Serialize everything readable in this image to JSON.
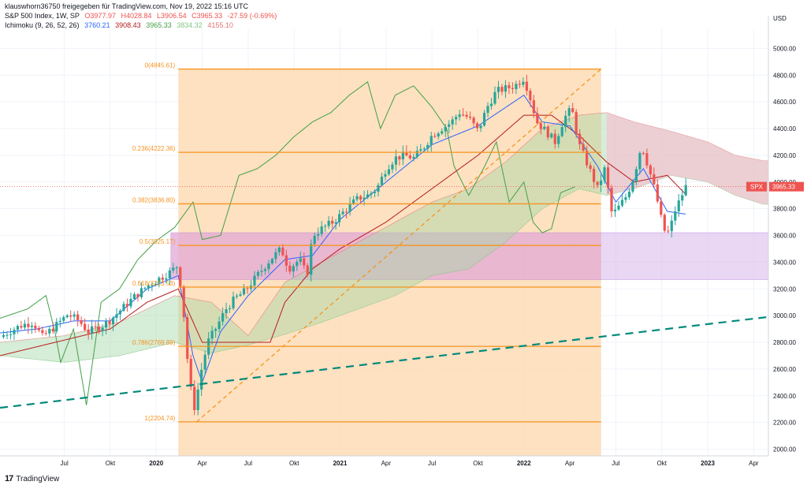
{
  "header": {
    "line1": "klauswhorn36750 freigegeben für TradingView.com, Nov 19, 2022 15:16 UTC",
    "line2": {
      "symbol": "S&P 500 Index, 1W, SP",
      "open": "O3977.97",
      "high": "H4028.84",
      "low": "L3906.54",
      "close": "C3965.33",
      "change": "-27.59 (-0.69%)"
    },
    "line3": {
      "name": "Ichimoku (9, 26, 52, 26)",
      "v1": "3760.21",
      "v2": "3908.43",
      "v3": "3965.33",
      "v4": "3834.32",
      "v5": "4155.10"
    }
  },
  "footer": {
    "logo_text": "TradingView",
    "logo_mark": "17"
  },
  "colors": {
    "up": "#26a69a",
    "down": "#ef5350",
    "fib": "#f7931e",
    "fib_zone": "#fddcb5",
    "pink_zone": "#e8a0c8",
    "purple_zone": "#d9b8ec",
    "tenkan": "#2962ff",
    "kijun": "#b71c1c",
    "chikou": "#43a047",
    "cloud_bull": "#a5d6a7",
    "cloud_bear": "#f8bbd0",
    "trend": "#00897b"
  },
  "chart_data": {
    "type": "candlestick",
    "currency": "USD",
    "last_label": "SPX",
    "last_value": "3965.33",
    "ylim": [
      1950,
      5150
    ],
    "y_ticks": [
      "5000.00",
      "4800.00",
      "4600.00",
      "4400.00",
      "4200.00",
      "4000.00",
      "3800.00",
      "3600.00",
      "3400.00",
      "3200.00",
      "3000.00",
      "2800.00",
      "2600.00",
      "2400.00",
      "2200.00",
      "2000.00"
    ],
    "x_ticks": [
      {
        "t": 2019.5,
        "label": "Jul",
        "bold": false
      },
      {
        "t": 2019.75,
        "label": "Okt",
        "bold": false
      },
      {
        "t": 2020.0,
        "label": "2020",
        "bold": true
      },
      {
        "t": 2020.25,
        "label": "Apr",
        "bold": false
      },
      {
        "t": 2020.5,
        "label": "Jul",
        "bold": false
      },
      {
        "t": 2020.75,
        "label": "Okt",
        "bold": false
      },
      {
        "t": 2021.0,
        "label": "2021",
        "bold": true
      },
      {
        "t": 2021.25,
        "label": "Apr",
        "bold": false
      },
      {
        "t": 2021.5,
        "label": "Jul",
        "bold": false
      },
      {
        "t": 2021.75,
        "label": "Okt",
        "bold": false
      },
      {
        "t": 2022.0,
        "label": "2022",
        "bold": true
      },
      {
        "t": 2022.25,
        "label": "Apr",
        "bold": false
      },
      {
        "t": 2022.5,
        "label": "Jul",
        "bold": false
      },
      {
        "t": 2022.75,
        "label": "Okt",
        "bold": false
      },
      {
        "t": 2023.0,
        "label": "2023",
        "bold": true
      },
      {
        "t": 2023.25,
        "label": "Apr",
        "bold": false
      }
    ],
    "fib_levels": [
      {
        "label": "0(4845.61)",
        "value": 4845.61
      },
      {
        "label": "0.236(4222.36)",
        "value": 4222.36
      },
      {
        "label": "0.382(3836.80)",
        "value": 3836.8
      },
      {
        "label": "0.5(3525.17)",
        "value": 3525.17
      },
      {
        "label": "0.618(3213.53)",
        "value": 3213.53
      },
      {
        "label": "0.786(2769.89)",
        "value": 2769.89
      },
      {
        "label": "1(2204.74)",
        "value": 2204.74
      }
    ],
    "fib_range": {
      "t_start": 2020.12,
      "t_end": 2022.42
    },
    "zone": {
      "t_start": 2020.08,
      "t_end": 2023.33,
      "y_low": 3270,
      "y_high": 3620
    },
    "fib_diagonal": {
      "t1": 2020.22,
      "y1": 2204.74,
      "t2": 2022.42,
      "y2": 4845.61
    },
    "trendline": {
      "t1": 2019.15,
      "y1": 2310,
      "t2": 2023.33,
      "y2": 2990
    },
    "price_path": [
      [
        2019.15,
        2840
      ],
      [
        2019.2,
        2880
      ],
      [
        2019.27,
        2930
      ],
      [
        2019.33,
        2950
      ],
      [
        2019.38,
        2840
      ],
      [
        2019.45,
        2920
      ],
      [
        2019.52,
        3010
      ],
      [
        2019.58,
        2960
      ],
      [
        2019.63,
        2880
      ],
      [
        2019.7,
        2920
      ],
      [
        2019.76,
        2980
      ],
      [
        2019.82,
        3060
      ],
      [
        2019.88,
        3140
      ],
      [
        2019.95,
        3220
      ],
      [
        2020.02,
        3280
      ],
      [
        2020.08,
        3330
      ],
      [
        2020.12,
        3380
      ],
      [
        2020.15,
        3000
      ],
      [
        2020.18,
        2500
      ],
      [
        2020.21,
        2300
      ],
      [
        2020.24,
        2560
      ],
      [
        2020.28,
        2800
      ],
      [
        2020.33,
        2920
      ],
      [
        2020.38,
        3050
      ],
      [
        2020.43,
        3130
      ],
      [
        2020.48,
        3180
      ],
      [
        2020.55,
        3300
      ],
      [
        2020.62,
        3420
      ],
      [
        2020.68,
        3500
      ],
      [
        2020.72,
        3350
      ],
      [
        2020.78,
        3420
      ],
      [
        2020.82,
        3300
      ],
      [
        2020.85,
        3600
      ],
      [
        2020.9,
        3650
      ],
      [
        2020.96,
        3700
      ],
      [
        2021.0,
        3750
      ],
      [
        2021.05,
        3820
      ],
      [
        2021.1,
        3880
      ],
      [
        2021.15,
        3900
      ],
      [
        2021.2,
        3950
      ],
      [
        2021.25,
        4100
      ],
      [
        2021.3,
        4180
      ],
      [
        2021.35,
        4200
      ],
      [
        2021.4,
        4180
      ],
      [
        2021.45,
        4250
      ],
      [
        2021.5,
        4350
      ],
      [
        2021.55,
        4400
      ],
      [
        2021.6,
        4440
      ],
      [
        2021.65,
        4520
      ],
      [
        2021.7,
        4480
      ],
      [
        2021.75,
        4380
      ],
      [
        2021.8,
        4560
      ],
      [
        2021.85,
        4680
      ],
      [
        2021.9,
        4700
      ],
      [
        2021.95,
        4720
      ],
      [
        2022.0,
        4780
      ],
      [
        2022.03,
        4650
      ],
      [
        2022.07,
        4450
      ],
      [
        2022.12,
        4380
      ],
      [
        2022.17,
        4300
      ],
      [
        2022.22,
        4480
      ],
      [
        2022.26,
        4550
      ],
      [
        2022.3,
        4280
      ],
      [
        2022.35,
        4120
      ],
      [
        2022.4,
        3950
      ],
      [
        2022.44,
        4100
      ],
      [
        2022.48,
        3750
      ],
      [
        2022.52,
        3820
      ],
      [
        2022.56,
        3900
      ],
      [
        2022.6,
        4050
      ],
      [
        2022.64,
        4280
      ],
      [
        2022.68,
        4100
      ],
      [
        2022.72,
        3900
      ],
      [
        2022.76,
        3640
      ],
      [
        2022.79,
        3620
      ],
      [
        2022.82,
        3780
      ],
      [
        2022.85,
        3870
      ],
      [
        2022.88,
        3965
      ]
    ],
    "tenkan_path": [
      [
        2019.15,
        2870
      ],
      [
        2019.35,
        2900
      ],
      [
        2019.55,
        2960
      ],
      [
        2019.75,
        2960
      ],
      [
        2019.95,
        3200
      ],
      [
        2020.12,
        3300
      ],
      [
        2020.2,
        2700
      ],
      [
        2020.25,
        2500
      ],
      [
        2020.35,
        2880
      ],
      [
        2020.5,
        3150
      ],
      [
        2020.7,
        3420
      ],
      [
        2020.85,
        3450
      ],
      [
        2021.0,
        3720
      ],
      [
        2021.25,
        4000
      ],
      [
        2021.5,
        4280
      ],
      [
        2021.75,
        4420
      ],
      [
        2022.0,
        4650
      ],
      [
        2022.1,
        4450
      ],
      [
        2022.25,
        4420
      ],
      [
        2022.4,
        4120
      ],
      [
        2022.5,
        3850
      ],
      [
        2022.65,
        4100
      ],
      [
        2022.78,
        3780
      ],
      [
        2022.88,
        3760
      ]
    ],
    "kijun_path": [
      [
        2019.15,
        2700
      ],
      [
        2019.45,
        2800
      ],
      [
        2019.75,
        2900
      ],
      [
        2019.95,
        3100
      ],
      [
        2020.12,
        3200
      ],
      [
        2020.25,
        2800
      ],
      [
        2020.45,
        2800
      ],
      [
        2020.62,
        2800
      ],
      [
        2020.7,
        3100
      ],
      [
        2020.85,
        3350
      ],
      [
        2021.0,
        3500
      ],
      [
        2021.25,
        3700
      ],
      [
        2021.5,
        3950
      ],
      [
        2021.75,
        4200
      ],
      [
        2022.0,
        4500
      ],
      [
        2022.15,
        4500
      ],
      [
        2022.3,
        4350
      ],
      [
        2022.45,
        4150
      ],
      [
        2022.6,
        4000
      ],
      [
        2022.78,
        4050
      ],
      [
        2022.88,
        3908
      ]
    ],
    "chikou_path": [
      [
        2019.15,
        2980
      ],
      [
        2019.3,
        3050
      ],
      [
        2019.4,
        3150
      ],
      [
        2019.45,
        2870
      ],
      [
        2019.48,
        2650
      ],
      [
        2019.55,
        2900
      ],
      [
        2019.62,
        2330
      ],
      [
        2019.7,
        3100
      ],
      [
        2019.8,
        3200
      ],
      [
        2019.9,
        3420
      ],
      [
        2020.0,
        3560
      ],
      [
        2020.1,
        3660
      ],
      [
        2020.2,
        3850
      ],
      [
        2020.25,
        3570
      ],
      [
        2020.35,
        3600
      ],
      [
        2020.45,
        4050
      ],
      [
        2020.55,
        4100
      ],
      [
        2020.65,
        4200
      ],
      [
        2020.75,
        4340
      ],
      [
        2020.85,
        4450
      ],
      [
        2020.95,
        4520
      ],
      [
        2021.05,
        4650
      ],
      [
        2021.15,
        4750
      ],
      [
        2021.22,
        4400
      ],
      [
        2021.3,
        4650
      ],
      [
        2021.4,
        4720
      ],
      [
        2021.5,
        4560
      ],
      [
        2021.58,
        4400
      ],
      [
        2021.62,
        4120
      ],
      [
        2021.7,
        3900
      ],
      [
        2021.78,
        4100
      ],
      [
        2021.85,
        4300
      ],
      [
        2021.92,
        3850
      ],
      [
        2022.0,
        4000
      ],
      [
        2022.05,
        3700
      ],
      [
        2022.1,
        3620
      ],
      [
        2022.15,
        3650
      ],
      [
        2022.2,
        3920
      ],
      [
        2022.28,
        3965
      ]
    ],
    "cloud_top_path": [
      [
        2019.15,
        2800
      ],
      [
        2019.5,
        2850
      ],
      [
        2019.8,
        2950
      ],
      [
        2020.1,
        3150
      ],
      [
        2020.3,
        3100
      ],
      [
        2020.5,
        2850
      ],
      [
        2020.7,
        3250
      ],
      [
        2020.9,
        3400
      ],
      [
        2021.1,
        3550
      ],
      [
        2021.3,
        3700
      ],
      [
        2021.5,
        3850
      ],
      [
        2021.7,
        3950
      ],
      [
        2021.9,
        4150
      ],
      [
        2022.1,
        4400
      ],
      [
        2022.3,
        4500
      ],
      [
        2022.45,
        4520
      ],
      [
        2022.6,
        4450
      ],
      [
        2022.8,
        4380
      ],
      [
        2023.0,
        4300
      ],
      [
        2023.15,
        4200
      ],
      [
        2023.3,
        4160
      ]
    ],
    "cloud_bottom_path": [
      [
        2019.15,
        2700
      ],
      [
        2019.5,
        2650
      ],
      [
        2019.8,
        2700
      ],
      [
        2020.1,
        2800
      ],
      [
        2020.3,
        2720
      ],
      [
        2020.5,
        2780
      ],
      [
        2020.7,
        2860
      ],
      [
        2020.9,
        2950
      ],
      [
        2021.1,
        3050
      ],
      [
        2021.3,
        3150
      ],
      [
        2021.5,
        3300
      ],
      [
        2021.7,
        3350
      ],
      [
        2021.9,
        3550
      ],
      [
        2022.1,
        3800
      ],
      [
        2022.3,
        3950
      ],
      [
        2022.45,
        3900
      ],
      [
        2022.6,
        3950
      ],
      [
        2022.8,
        4050
      ],
      [
        2023.0,
        4000
      ],
      [
        2023.15,
        3900
      ],
      [
        2023.3,
        3834
      ]
    ]
  }
}
